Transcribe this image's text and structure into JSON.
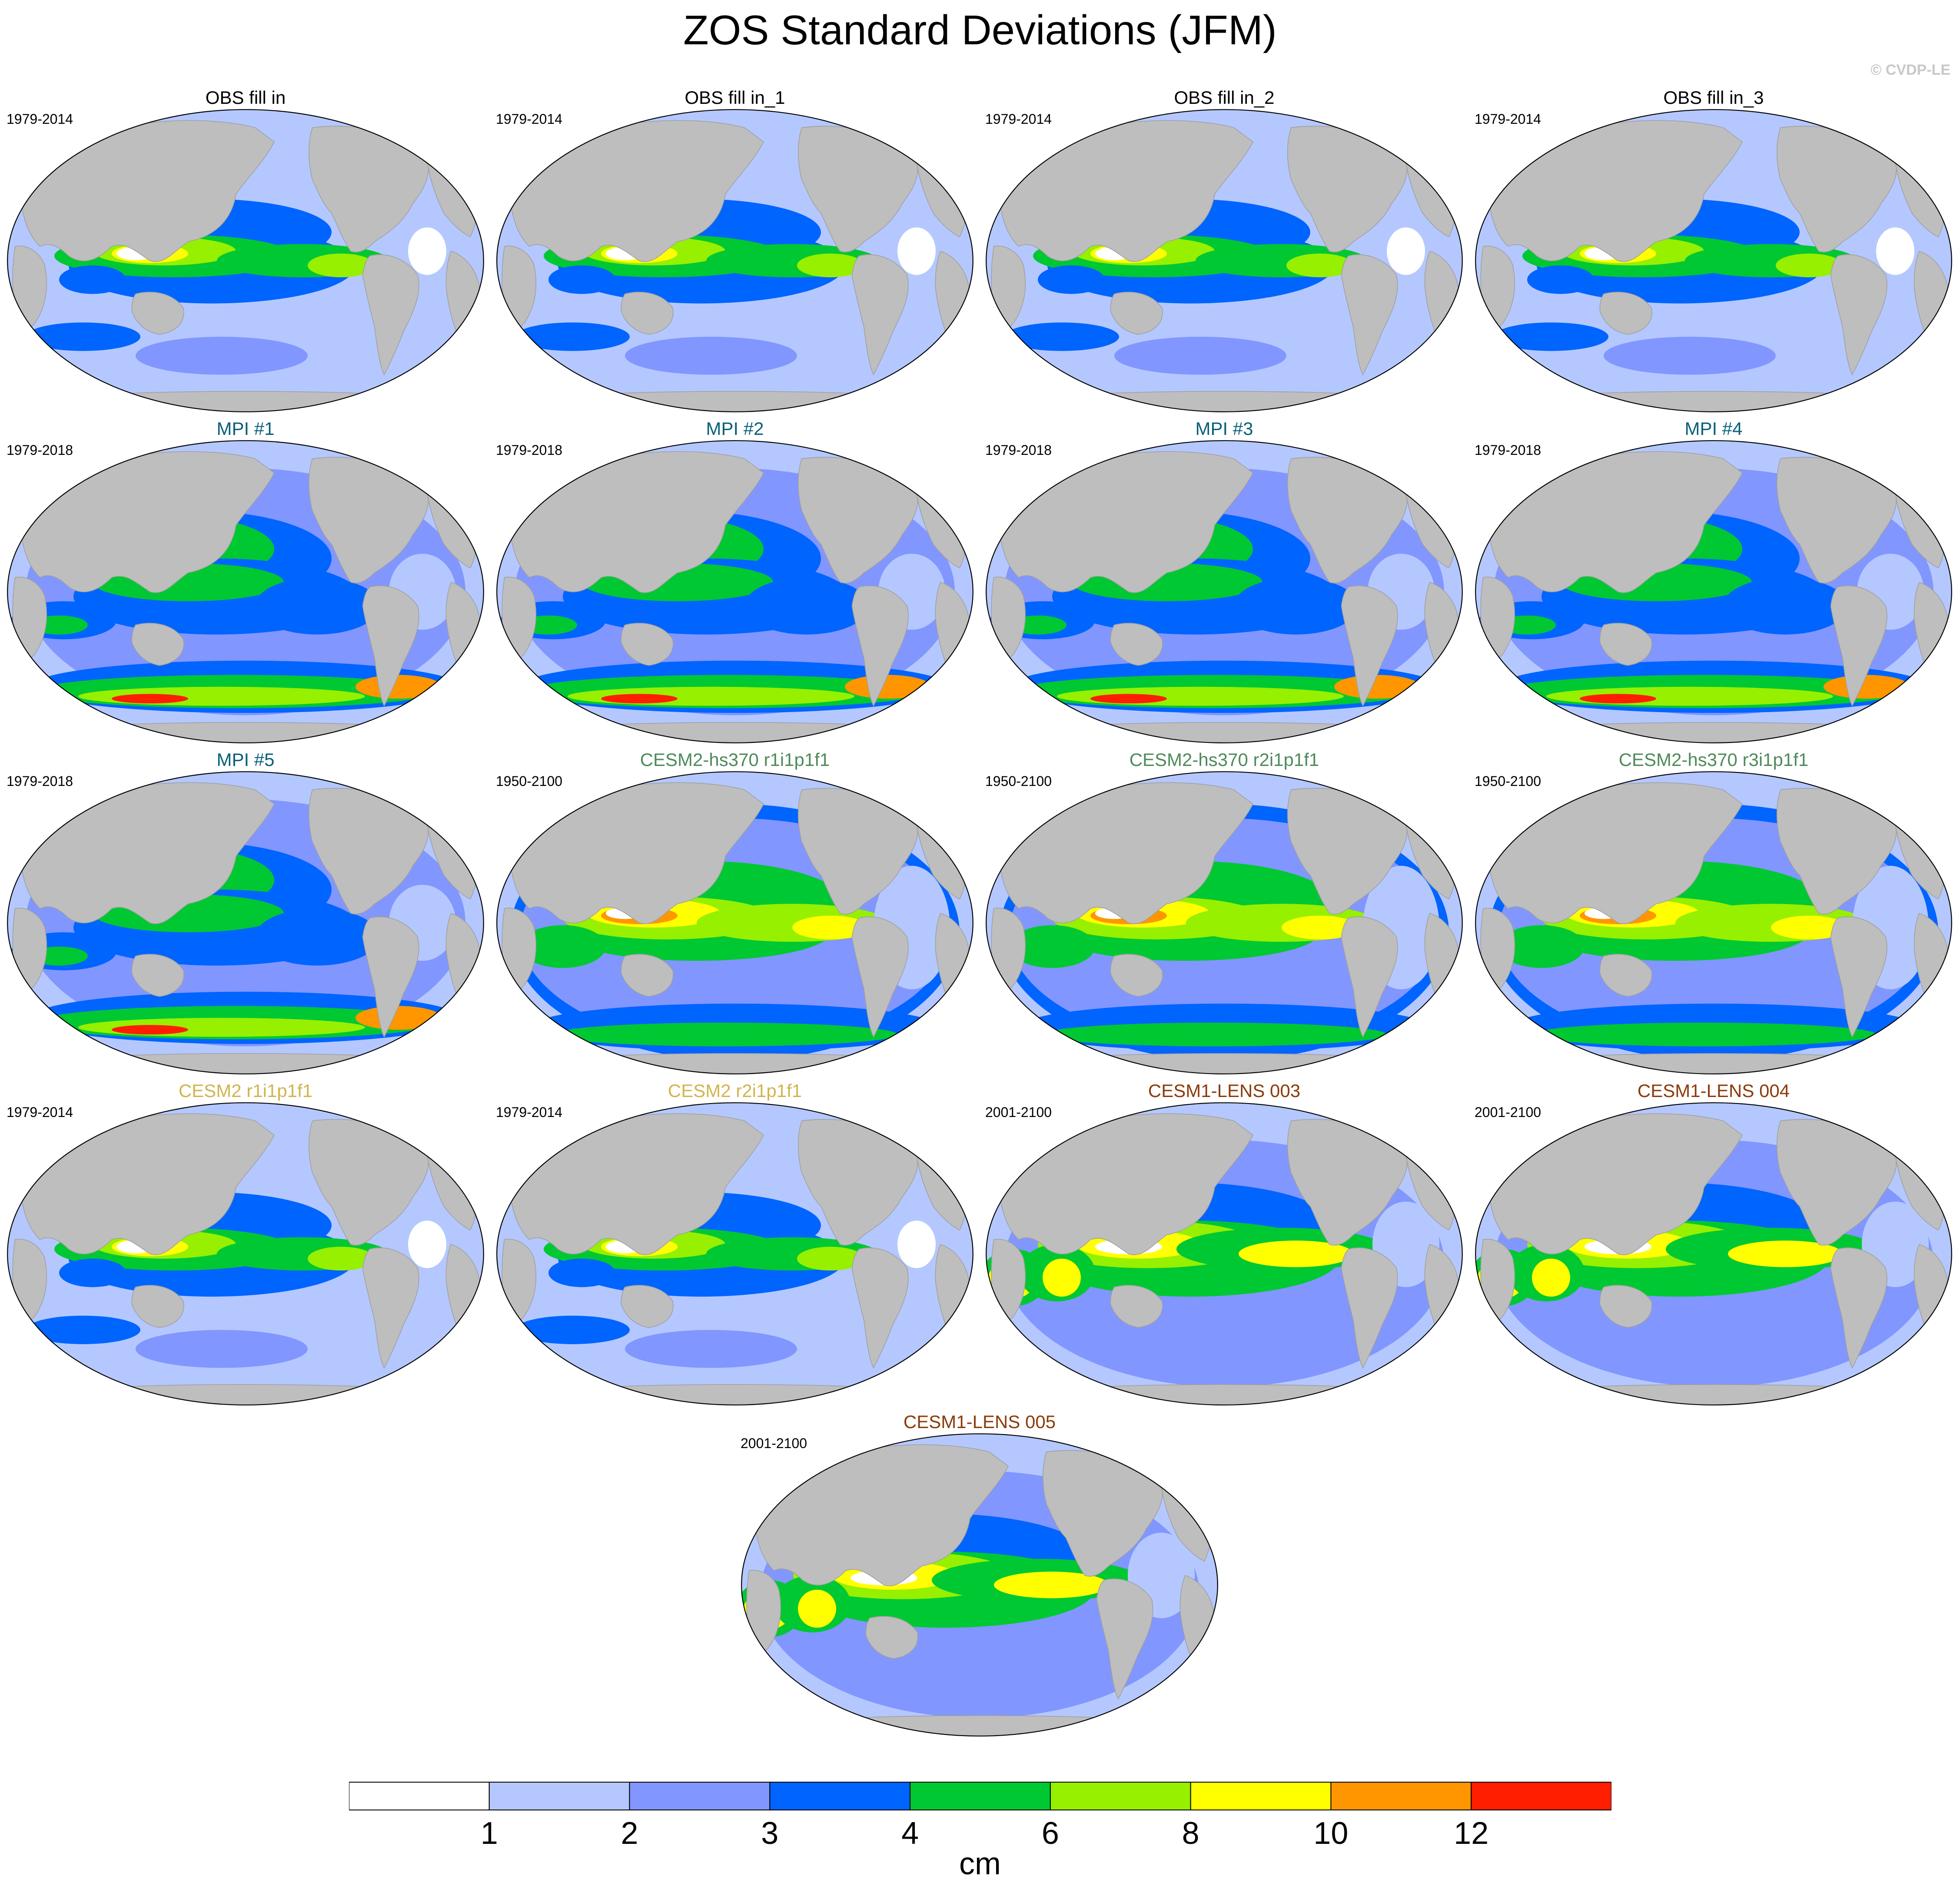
{
  "title": "ZOS Standard Deviations (JFM)",
  "credit": "© CVDP-LE",
  "colorbar": {
    "units": "cm",
    "boundaries": [
      "1",
      "2",
      "3",
      "4",
      "6",
      "8",
      "10",
      "12"
    ],
    "colors": [
      "#ffffff",
      "#b4c8ff",
      "#8296ff",
      "#0064ff",
      "#00c832",
      "#96f000",
      "#ffff00",
      "#ff9600",
      "#ff1e00"
    ]
  },
  "panels": [
    {
      "title": "OBS fill in",
      "period": "1979-2014",
      "title_color": "#000000",
      "style": "obs"
    },
    {
      "title": "OBS fill in_1",
      "period": "1979-2014",
      "title_color": "#000000",
      "style": "obs"
    },
    {
      "title": "OBS fill in_2",
      "period": "1979-2014",
      "title_color": "#000000",
      "style": "obs"
    },
    {
      "title": "OBS fill in_3",
      "period": "1979-2014",
      "title_color": "#000000",
      "style": "obs"
    },
    {
      "title": "MPI #1",
      "period": "1979-2018",
      "title_color": "#0a5f7a",
      "style": "mpi"
    },
    {
      "title": "MPI #2",
      "period": "1979-2018",
      "title_color": "#0a5f7a",
      "style": "mpi"
    },
    {
      "title": "MPI #3",
      "period": "1979-2018",
      "title_color": "#0a5f7a",
      "style": "mpi"
    },
    {
      "title": "MPI #4",
      "period": "1979-2018",
      "title_color": "#0a5f7a",
      "style": "mpi"
    },
    {
      "title": "MPI #5",
      "period": "1979-2018",
      "title_color": "#0a5f7a",
      "style": "mpi"
    },
    {
      "title": "CESM2-hs370 r1i1p1f1",
      "period": "1950-2100",
      "title_color": "#4e8a5a",
      "style": "hs"
    },
    {
      "title": "CESM2-hs370 r2i1p1f1",
      "period": "1950-2100",
      "title_color": "#4e8a5a",
      "style": "hs"
    },
    {
      "title": "CESM2-hs370 r3i1p1f1",
      "period": "1950-2100",
      "title_color": "#4e8a5a",
      "style": "hs"
    },
    {
      "title": "CESM2 r1i1p1f1",
      "period": "1979-2014",
      "title_color": "#d2b44e",
      "style": "obs"
    },
    {
      "title": "CESM2 r2i1p1f1",
      "period": "1979-2014",
      "title_color": "#d2b44e",
      "style": "obs"
    },
    {
      "title": "CESM1-LENS 003",
      "period": "2001-2100",
      "title_color": "#8b3a0a",
      "style": "lens"
    },
    {
      "title": "CESM1-LENS 004",
      "period": "2001-2100",
      "title_color": "#8b3a0a",
      "style": "lens"
    },
    {
      "title": "CESM1-LENS 005",
      "period": "2001-2100",
      "title_color": "#8b3a0a",
      "style": "lens"
    }
  ]
}
